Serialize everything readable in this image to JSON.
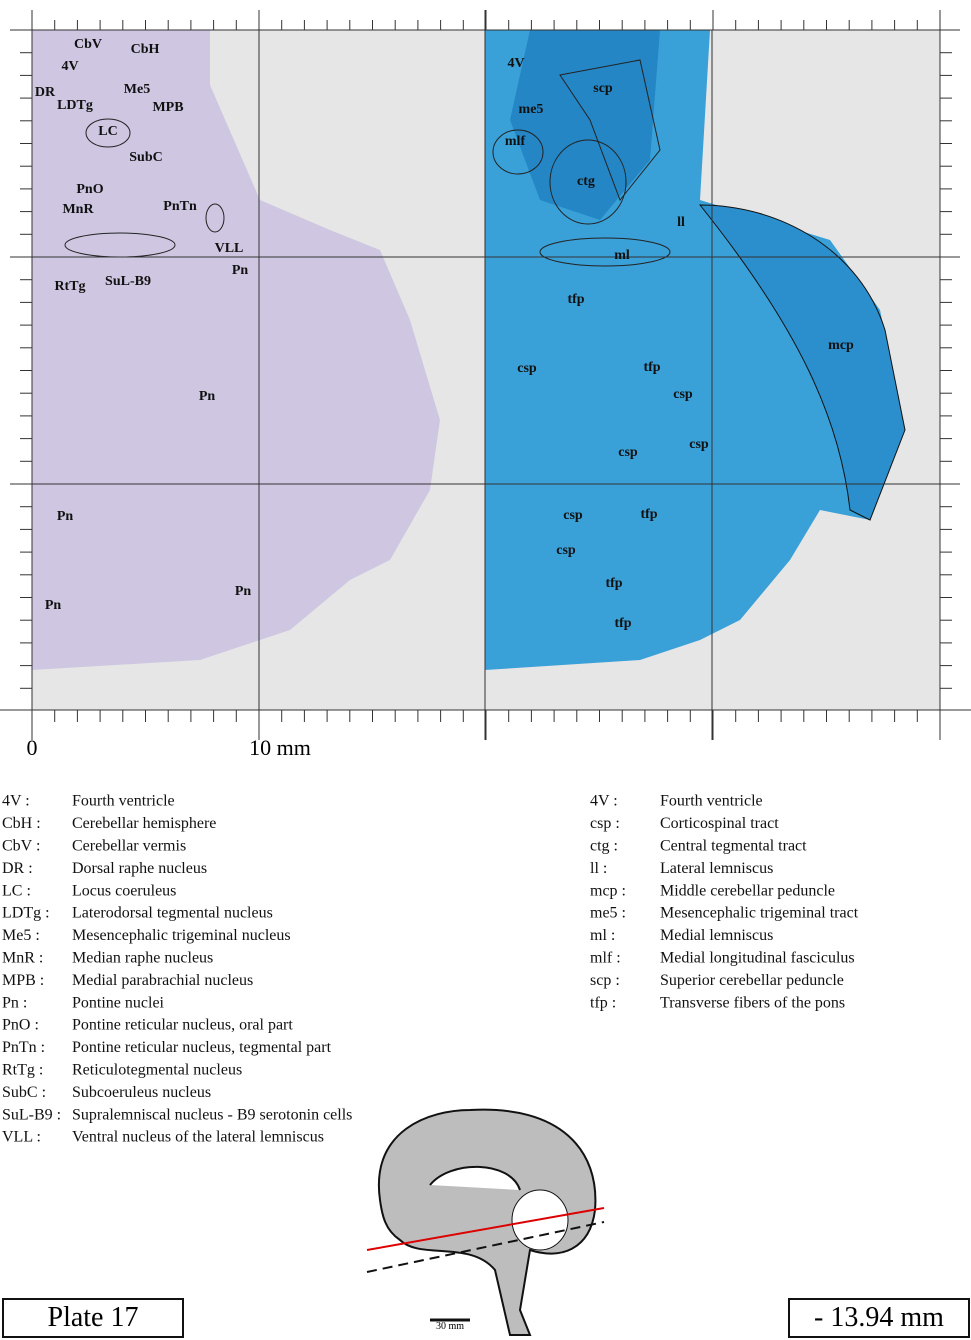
{
  "scale": {
    "origin": "0",
    "label": "10 mm"
  },
  "left_panel": {
    "labels": [
      "CbV",
      "CbH",
      "4V",
      "DR",
      "Me5",
      "LDTg",
      "MPB",
      "LC",
      "SubC",
      "PnO",
      "MnR",
      "PnTn",
      "VLL",
      "Pn",
      "RtTg",
      "SuL-B9",
      "Pn",
      "Pn",
      "Pn",
      "Pn"
    ]
  },
  "right_panel": {
    "labels": [
      "4V",
      "scp",
      "me5",
      "mlf",
      "ctg",
      "ll",
      "ml",
      "tfp",
      "mcp",
      "csp",
      "tfp",
      "csp",
      "csp",
      "csp",
      "csp",
      "tfp",
      "csp",
      "tfp",
      "tfp"
    ]
  },
  "legend_left": [
    {
      "abbr": "4V :",
      "name": "Fourth ventricle"
    },
    {
      "abbr": "CbH :",
      "name": "Cerebellar hemisphere"
    },
    {
      "abbr": "CbV :",
      "name": "Cerebellar vermis"
    },
    {
      "abbr": "DR :",
      "name": "Dorsal raphe nucleus"
    },
    {
      "abbr": "LC :",
      "name": "Locus coeruleus"
    },
    {
      "abbr": "LDTg :",
      "name": "Laterodorsal tegmental nucleus"
    },
    {
      "abbr": "Me5 :",
      "name": "Mesencephalic trigeminal nucleus"
    },
    {
      "abbr": "MnR :",
      "name": "Median raphe nucleus"
    },
    {
      "abbr": "MPB :",
      "name": "Medial parabrachial nucleus"
    },
    {
      "abbr": "Pn :",
      "name": "Pontine nuclei"
    },
    {
      "abbr": "PnO :",
      "name": "Pontine reticular nucleus, oral part"
    },
    {
      "abbr": "PnTn :",
      "name": "Pontine reticular nucleus, tegmental part"
    },
    {
      "abbr": "RtTg :",
      "name": "Reticulotegmental nucleus"
    },
    {
      "abbr": "SubC :",
      "name": "Subcoeruleus nucleus"
    },
    {
      "abbr": "SuL-B9 :",
      "name": "Supralemniscal nucleus - B9 serotonin cells"
    },
    {
      "abbr": "VLL :",
      "name": "Ventral nucleus of the lateral lemniscus"
    }
  ],
  "legend_right": [
    {
      "abbr": "4V :",
      "name": "Fourth ventricle"
    },
    {
      "abbr": "csp :",
      "name": "Corticospinal tract"
    },
    {
      "abbr": "ctg :",
      "name": "Central tegmental tract"
    },
    {
      "abbr": "ll :",
      "name": "Lateral lemniscus"
    },
    {
      "abbr": "mcp :",
      "name": "Middle cerebellar peduncle"
    },
    {
      "abbr": "me5 :",
      "name": "Mesencephalic trigeminal tract"
    },
    {
      "abbr": "ml :",
      "name": "Medial lemniscus"
    },
    {
      "abbr": "mlf :",
      "name": "Medial longitudinal fasciculus"
    },
    {
      "abbr": "scp :",
      "name": "Superior cerebellar peduncle"
    },
    {
      "abbr": "tfp :",
      "name": "Transverse fibers of the pons"
    }
  ],
  "plate": "Plate 17",
  "position": "- 13.94 mm",
  "brain_scale": "30 mm"
}
